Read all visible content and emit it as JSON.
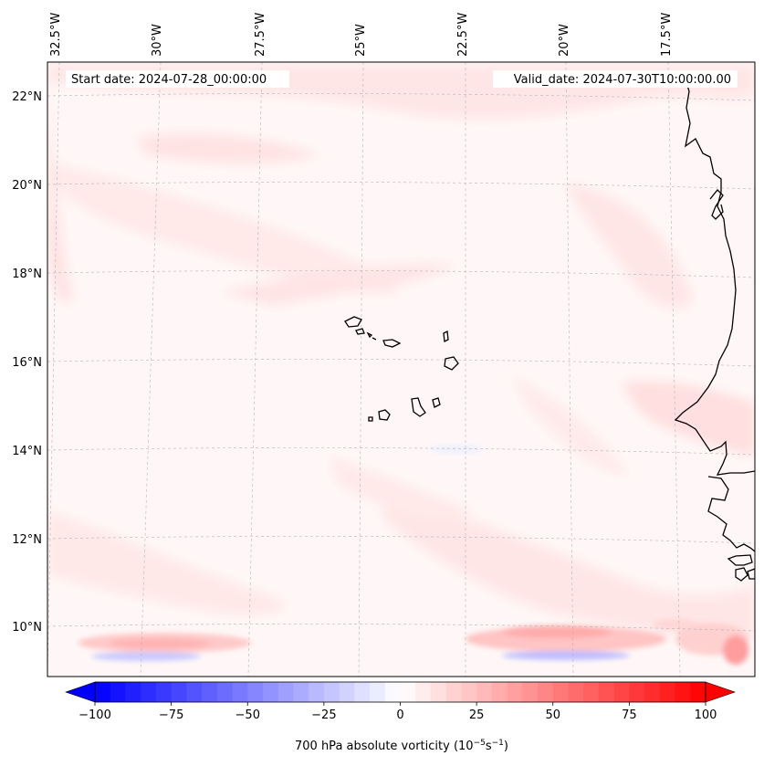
{
  "map": {
    "start_date": "Start date: 2024-07-28_00:00:00",
    "valid_date": "Valid_date: 2024-07-30T10:00:00.00",
    "lon_labels": [
      "32.5°W",
      "30°W",
      "27.5°W",
      "25°W",
      "22.5°W",
      "20°W",
      "17.5°W"
    ],
    "lat_labels": [
      "22°N",
      "20°N",
      "18°N",
      "16°N",
      "14°N",
      "12°N",
      "10°N"
    ],
    "colorbar": {
      "label_prefix": "700 hPa absolute vorticity (10",
      "label_exp1": "−5",
      "label_mid": "s",
      "label_exp2": "−1",
      "label_suffix": ")",
      "min": -100,
      "max": 100,
      "ticks": [
        "−100",
        "−75",
        "−50",
        "−25",
        "0",
        "25",
        "50",
        "75",
        "100"
      ],
      "colors": {
        "negative": "#0000ff",
        "neutral": "#ffffff",
        "positive": "#ff0000"
      }
    }
  }
}
